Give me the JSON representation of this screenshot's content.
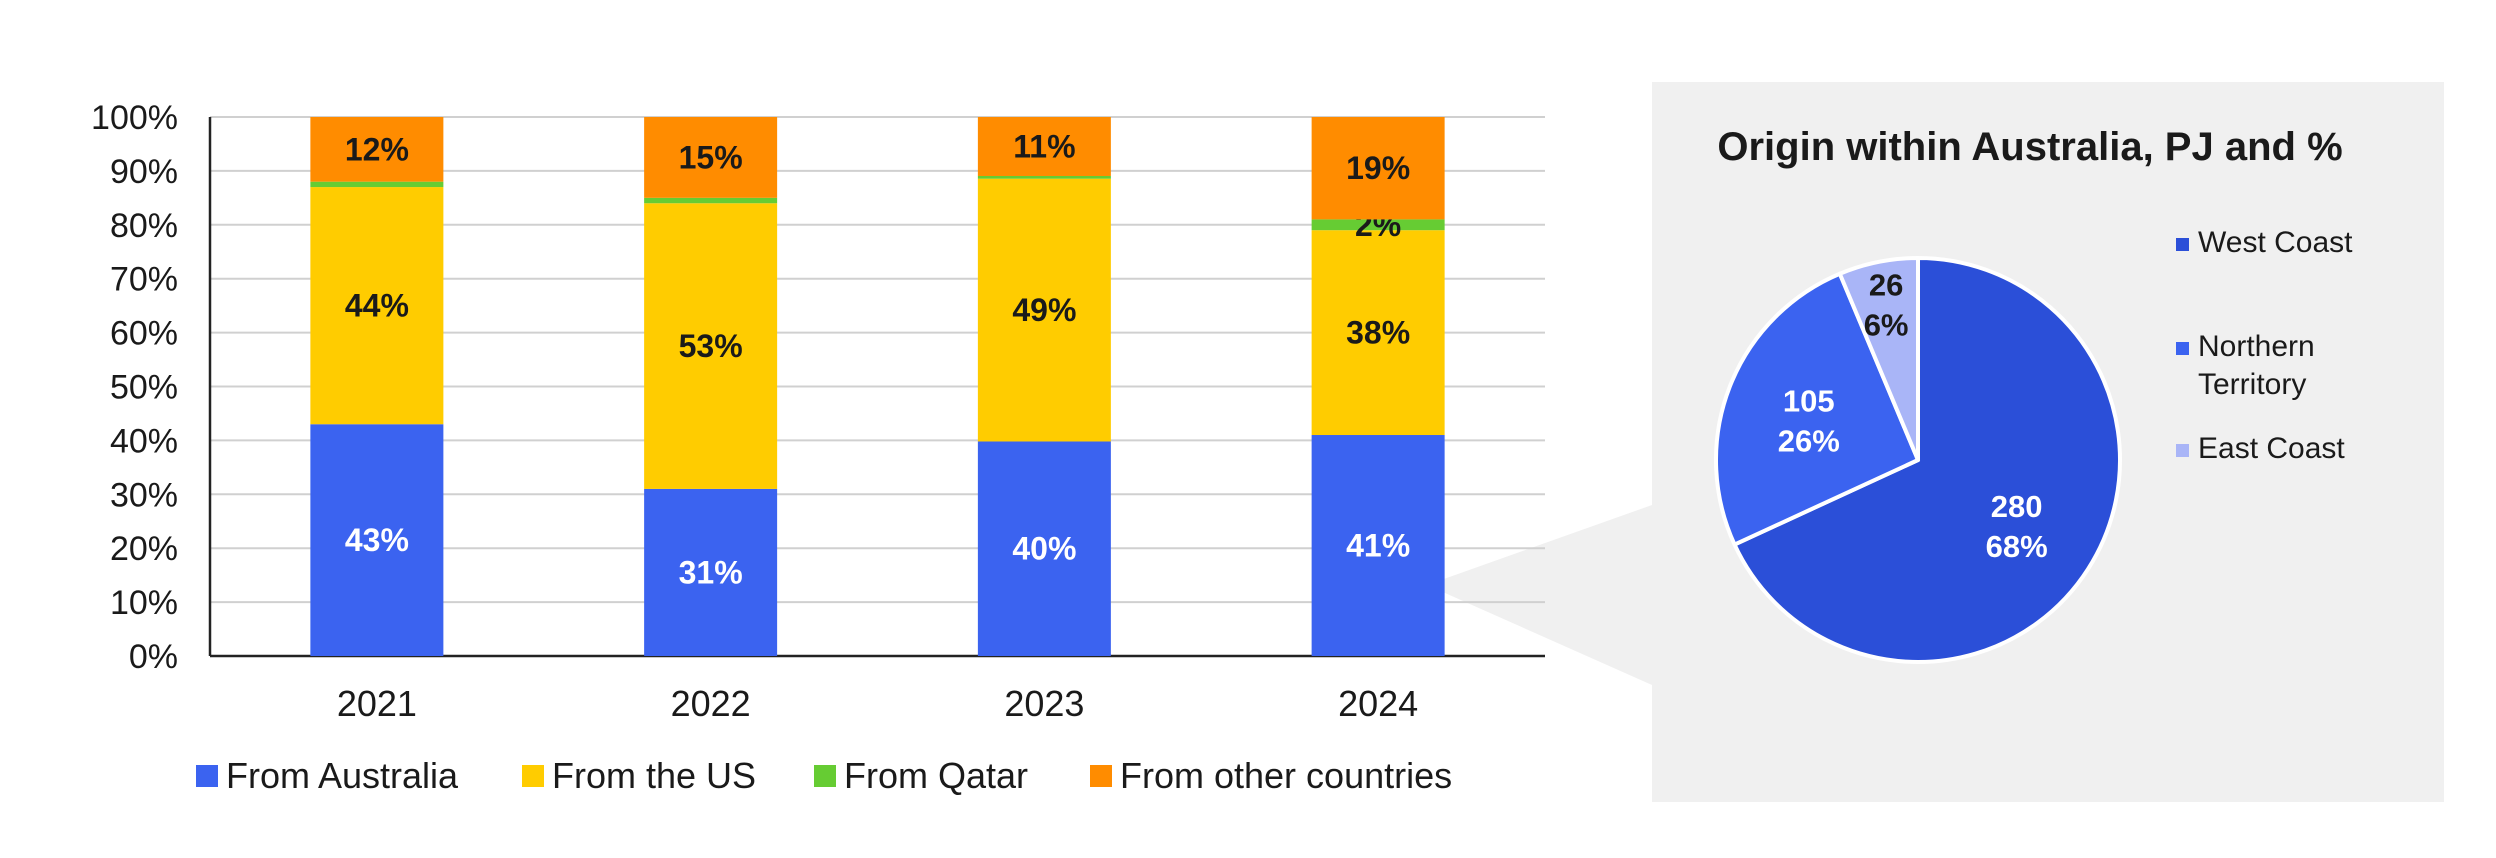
{
  "chart_data": [
    {
      "type": "bar",
      "stacked": true,
      "title": "",
      "xlabel": "",
      "ylabel": "",
      "ylim": [
        0,
        100
      ],
      "yticks": [
        "0%",
        "10%",
        "20%",
        "30%",
        "40%",
        "50%",
        "60%",
        "70%",
        "80%",
        "90%",
        "100%"
      ],
      "grid": true,
      "legend_position": "bottom",
      "categories": [
        "2021",
        "2022",
        "2023",
        "2024"
      ],
      "series": [
        {
          "name": "From Australia",
          "color": "#3b63f0",
          "label_color": "#ffffff",
          "values": [
            43,
            31,
            40,
            41
          ],
          "labels": [
            "43%",
            "31%",
            "40%",
            "41%"
          ]
        },
        {
          "name": "From the US",
          "color": "#ffcc00",
          "label_color": "#1a1a1a",
          "values": [
            44,
            53,
            49,
            38
          ],
          "labels": [
            "44%",
            "53%",
            "49%",
            "38%"
          ]
        },
        {
          "name": "From Qatar",
          "color": "#66cc33",
          "label_color": "#1a1a1a",
          "values": [
            1,
            1,
            0.5,
            2
          ],
          "labels": [
            "",
            "",
            "",
            "2%"
          ]
        },
        {
          "name": "From other countries",
          "color": "#ff8c00",
          "label_color": "#1a1a1a",
          "values": [
            12,
            15,
            11,
            19
          ],
          "labels": [
            "12%",
            "15%",
            "11%",
            "19%"
          ]
        }
      ]
    },
    {
      "type": "pie",
      "title": "Origin within Australia, PJ and %",
      "legend_position": "right",
      "slices": [
        {
          "name": "West Coast",
          "value": 280,
          "percent": "68%",
          "value_label": "280",
          "color": "#2b4fd8",
          "label_color": "#ffffff"
        },
        {
          "name": "Northern Territory",
          "legend_lines": [
            "Northern",
            "Territory"
          ],
          "value": 105,
          "percent": "26%",
          "value_label": "105",
          "color": "#3b63f0",
          "label_color": "#ffffff"
        },
        {
          "name": "East Coast",
          "value": 26,
          "percent": "6%",
          "value_label": "26",
          "color": "#a9b5f7",
          "label_color": "#1a1a1a"
        }
      ]
    }
  ]
}
